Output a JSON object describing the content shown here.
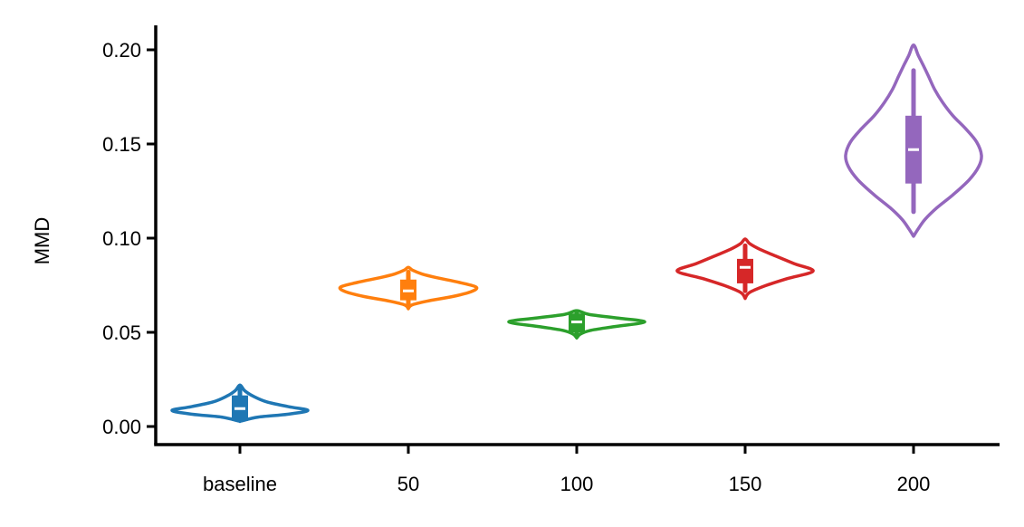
{
  "chart_data": {
    "type": "violin",
    "title": "",
    "xlabel": "",
    "ylabel": "MMD",
    "ylim": [
      -0.01,
      0.215
    ],
    "yticks": [
      "0.00",
      "0.05",
      "0.10",
      "0.15",
      "0.20"
    ],
    "ytick_values": [
      0.0,
      0.05,
      0.1,
      0.15,
      0.2
    ],
    "categories": [
      "baseline",
      "50",
      "100",
      "150",
      "200"
    ],
    "grid": false,
    "legend": "none",
    "series": [
      {
        "category": "baseline",
        "color": "#1f77b4",
        "min": 0.003,
        "q1": 0.003,
        "median": 0.0095,
        "q3": 0.0165,
        "max": 0.02,
        "kde_range": [
          0.003,
          0.022
        ],
        "density": [
          [
            0.003,
            0.03
          ],
          [
            0.005,
            0.27
          ],
          [
            0.0065,
            0.7
          ],
          [
            0.0085,
            1.0
          ],
          [
            0.0105,
            0.72
          ],
          [
            0.013,
            0.4
          ],
          [
            0.016,
            0.2
          ],
          [
            0.019,
            0.07
          ],
          [
            0.022,
            0.0
          ]
        ]
      },
      {
        "category": "50",
        "color": "#ff7f0e",
        "min": 0.064,
        "q1": 0.067,
        "median": 0.072,
        "q3": 0.078,
        "max": 0.082,
        "kde_range": [
          0.0625,
          0.0845
        ],
        "density": [
          [
            0.0625,
            0.0
          ],
          [
            0.0645,
            0.05
          ],
          [
            0.0665,
            0.27
          ],
          [
            0.069,
            0.65
          ],
          [
            0.0715,
            0.92
          ],
          [
            0.074,
            1.0
          ],
          [
            0.0765,
            0.75
          ],
          [
            0.079,
            0.42
          ],
          [
            0.081,
            0.2
          ],
          [
            0.083,
            0.06
          ],
          [
            0.0845,
            0.0
          ]
        ]
      },
      {
        "category": "100",
        "color": "#2ca02c",
        "min": 0.049,
        "q1": 0.05,
        "median": 0.0555,
        "q3": 0.06,
        "max": 0.061,
        "kde_range": [
          0.047,
          0.0615
        ],
        "density": [
          [
            0.047,
            0.0
          ],
          [
            0.049,
            0.05
          ],
          [
            0.051,
            0.2
          ],
          [
            0.053,
            0.55
          ],
          [
            0.0555,
            1.0
          ],
          [
            0.0575,
            0.62
          ],
          [
            0.0595,
            0.18
          ],
          [
            0.0615,
            0.0
          ]
        ]
      },
      {
        "category": "150",
        "color": "#d62728",
        "min": 0.072,
        "q1": 0.076,
        "median": 0.0845,
        "q3": 0.089,
        "max": 0.096,
        "kde_range": [
          0.068,
          0.0995
        ],
        "density": [
          [
            0.068,
            0.0
          ],
          [
            0.071,
            0.06
          ],
          [
            0.0745,
            0.28
          ],
          [
            0.0785,
            0.62
          ],
          [
            0.0825,
            1.0
          ],
          [
            0.0865,
            0.72
          ],
          [
            0.0905,
            0.45
          ],
          [
            0.094,
            0.22
          ],
          [
            0.097,
            0.07
          ],
          [
            0.0995,
            0.0
          ]
        ]
      },
      {
        "category": "200",
        "color": "#9467bd",
        "min": 0.114,
        "q1": 0.129,
        "median": 0.147,
        "q3": 0.165,
        "max": 0.189,
        "kde_range": [
          0.101,
          0.2025
        ],
        "density": [
          [
            0.101,
            0.0
          ],
          [
            0.105,
            0.07
          ],
          [
            0.11,
            0.17
          ],
          [
            0.116,
            0.34
          ],
          [
            0.123,
            0.58
          ],
          [
            0.131,
            0.82
          ],
          [
            0.138,
            0.96
          ],
          [
            0.144,
            1.0
          ],
          [
            0.151,
            0.93
          ],
          [
            0.158,
            0.77
          ],
          [
            0.165,
            0.58
          ],
          [
            0.172,
            0.43
          ],
          [
            0.179,
            0.31
          ],
          [
            0.186,
            0.22
          ],
          [
            0.192,
            0.14
          ],
          [
            0.197,
            0.07
          ],
          [
            0.2025,
            0.0
          ]
        ]
      }
    ]
  }
}
